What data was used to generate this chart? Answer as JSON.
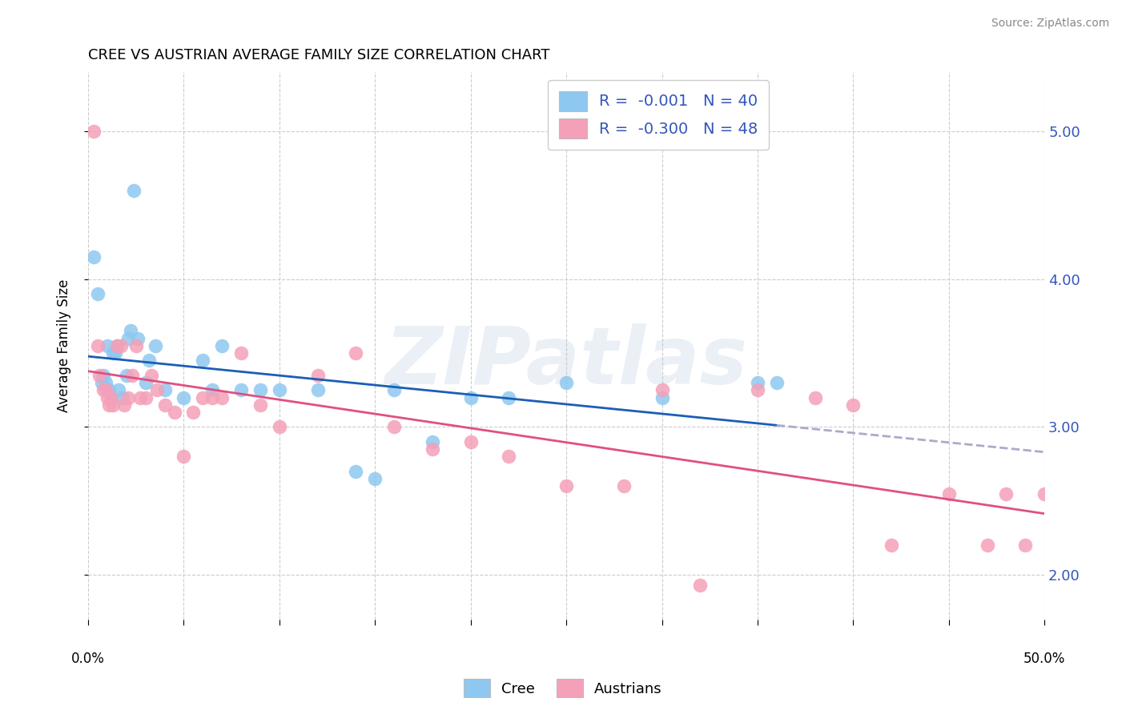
{
  "title": "CREE VS AUSTRIAN AVERAGE FAMILY SIZE CORRELATION CHART",
  "source": "Source: ZipAtlas.com",
  "ylabel": "Average Family Size",
  "yticks": [
    2.0,
    3.0,
    4.0,
    5.0
  ],
  "xlim": [
    0.0,
    50.0
  ],
  "ylim": [
    1.7,
    5.4
  ],
  "cree_color": "#8ec8f0",
  "austrian_color": "#f4a0b8",
  "cree_line_color": "#1a5fb4",
  "austrian_line_color": "#e05080",
  "watermark": "ZIPatlas",
  "cree_x": [
    0.3,
    0.5,
    0.7,
    0.8,
    0.9,
    1.0,
    1.1,
    1.2,
    1.3,
    1.4,
    1.5,
    1.6,
    1.8,
    2.0,
    2.1,
    2.2,
    2.4,
    2.6,
    3.0,
    3.2,
    3.5,
    4.0,
    5.0,
    6.0,
    6.5,
    7.0,
    8.0,
    9.0,
    10.0,
    12.0,
    14.0,
    15.0,
    16.0,
    18.0,
    20.0,
    22.0,
    25.0,
    30.0,
    35.0,
    36.0
  ],
  "cree_y": [
    4.15,
    3.9,
    3.3,
    3.35,
    3.3,
    3.55,
    3.25,
    3.2,
    3.5,
    3.5,
    3.55,
    3.25,
    3.2,
    3.35,
    3.6,
    3.65,
    4.6,
    3.6,
    3.3,
    3.45,
    3.55,
    3.25,
    3.2,
    3.45,
    3.25,
    3.55,
    3.25,
    3.25,
    3.25,
    3.25,
    2.7,
    2.65,
    3.25,
    2.9,
    3.2,
    3.2,
    3.3,
    3.2,
    3.3,
    3.3
  ],
  "austrian_x": [
    0.3,
    0.5,
    0.6,
    0.8,
    0.9,
    1.0,
    1.1,
    1.2,
    1.3,
    1.5,
    1.7,
    1.9,
    2.1,
    2.3,
    2.5,
    2.7,
    3.0,
    3.3,
    3.6,
    4.0,
    4.5,
    5.0,
    5.5,
    6.0,
    6.5,
    7.0,
    8.0,
    9.0,
    10.0,
    12.0,
    14.0,
    16.0,
    18.0,
    20.0,
    22.0,
    25.0,
    28.0,
    30.0,
    32.0,
    35.0,
    38.0,
    40.0,
    42.0,
    45.0,
    47.0,
    48.0,
    49.0,
    50.0
  ],
  "austrian_y": [
    5.0,
    3.55,
    3.35,
    3.25,
    3.25,
    3.2,
    3.15,
    3.2,
    3.15,
    3.55,
    3.55,
    3.15,
    3.2,
    3.35,
    3.55,
    3.2,
    3.2,
    3.35,
    3.25,
    3.15,
    3.1,
    2.8,
    3.1,
    3.2,
    3.2,
    3.2,
    3.5,
    3.15,
    3.0,
    3.35,
    3.5,
    3.0,
    2.85,
    2.9,
    2.8,
    2.6,
    2.6,
    3.25,
    1.93,
    3.25,
    3.2,
    3.15,
    2.2,
    2.55,
    2.2,
    2.55,
    2.2,
    2.55
  ],
  "background_color": "#ffffff",
  "grid_color": "#cccccc",
  "cree_line_end_solid": 36.0
}
